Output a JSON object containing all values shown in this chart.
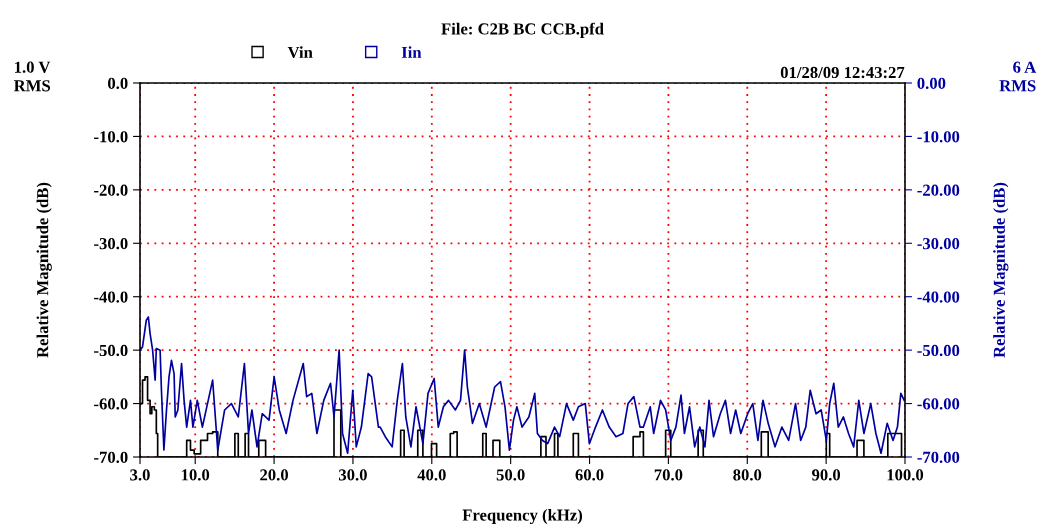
{
  "chart_data": {
    "type": "line",
    "title": "File: C2B BC CCB.pfd",
    "xlabel": "Frequency (kHz)",
    "ylabel": "Relative Magnitude (dB)",
    "y2label": "Relative Magnitude (dB)",
    "annotations": [
      "1.0 V\nRMS",
      "6 A\nRMS",
      "01/28/09 12:43:27"
    ],
    "legend": "top",
    "grid": true,
    "marker": "none",
    "line_style": "solid",
    "xlim": [
      3,
      100
    ],
    "xticks": [
      {
        "value": 3,
        "label": "3.0"
      },
      {
        "value": 10,
        "label": "10.0"
      },
      {
        "value": 20,
        "label": "20.0"
      },
      {
        "value": 30,
        "label": "30.0"
      },
      {
        "value": 40,
        "label": "40.0"
      },
      {
        "value": 50,
        "label": "50.0"
      },
      {
        "value": 60,
        "label": "60.0"
      },
      {
        "value": 70,
        "label": "70.0"
      },
      {
        "value": 80,
        "label": "80.0"
      },
      {
        "value": 90,
        "label": "90.0"
      },
      {
        "value": 100,
        "label": "100.0"
      }
    ],
    "ylim": [
      -70,
      0
    ],
    "yticks": [
      {
        "value": 0,
        "label": "0.0"
      },
      {
        "value": -10,
        "label": "-10.0"
      },
      {
        "value": -20,
        "label": "-20.0"
      },
      {
        "value": -30,
        "label": "-30.0"
      },
      {
        "value": -40,
        "label": "-40.0"
      },
      {
        "value": -50,
        "label": "-50.0"
      },
      {
        "value": -60,
        "label": "-60.0"
      },
      {
        "value": -70,
        "label": "-70.0"
      }
    ],
    "y2lim": [
      -70,
      0
    ],
    "y2ticks": [
      {
        "value": 0,
        "label": "0.00"
      },
      {
        "value": -10,
        "label": "-10.00"
      },
      {
        "value": -20,
        "label": "-20.00"
      },
      {
        "value": -30,
        "label": "-30.00"
      },
      {
        "value": -40,
        "label": "-40.00"
      },
      {
        "value": -50,
        "label": "-50.00"
      },
      {
        "value": -60,
        "label": "-60.00"
      },
      {
        "value": -70,
        "label": "-70.00"
      }
    ],
    "series": [
      {
        "name": "Vin",
        "color": "#000000",
        "type": "step",
        "x": [
          3.0,
          3.32,
          3.64,
          3.96,
          4.28,
          4.5,
          4.82,
          5.07,
          5.24,
          8.59,
          8.92,
          9.4,
          9.87,
          10.69,
          11.56,
          12.21,
          12.86,
          15.03,
          15.46,
          16.33,
          16.76,
          18.06,
          18.93,
          27.6,
          28.46,
          36.05,
          36.49,
          38.22,
          38.87,
          39.96,
          40.61,
          42.34,
          42.77,
          43.21,
          46.46,
          46.89,
          47.76,
          48.62,
          53.83,
          54.48,
          55.56,
          55.99,
          57.94,
          58.59,
          65.53,
          66.4,
          66.83,
          69.65,
          70.3,
          73.77,
          74.42,
          81.78,
          82.65,
          90.02,
          90.45,
          93.92,
          94.79,
          97.82,
          98.69,
          99.56
        ],
        "values": [
          -60.0,
          -55.6,
          -55.0,
          -59.4,
          -61.9,
          -60.6,
          -61.2,
          -65.6,
          -70,
          -70,
          -66.9,
          -68.7,
          -69.4,
          -66.9,
          -65.6,
          -65.3,
          -70,
          -65.6,
          -70,
          -65.6,
          -70,
          -66.9,
          -70,
          -61.2,
          -70,
          -65.0,
          -70,
          -65.0,
          -70,
          -67.5,
          -70,
          -65.6,
          -65.3,
          -70,
          -65.6,
          -70,
          -66.9,
          -70,
          -66.2,
          -70,
          -65.6,
          -70,
          -65.6,
          -70,
          -66.2,
          -65.3,
          -70,
          -65.0,
          -70,
          -65.0,
          -70,
          -65.3,
          -70,
          -65.6,
          -70,
          -66.9,
          -70,
          -65.6,
          -65.6,
          -70
        ]
      },
      {
        "name": "Iin",
        "color": "#0000a0",
        "axis": "y2",
        "x": [
          3.0,
          3.32,
          3.8,
          4.06,
          4.28,
          4.6,
          4.92,
          5.07,
          5.55,
          5.72,
          6.03,
          6.36,
          6.68,
          6.99,
          7.32,
          7.47,
          7.8,
          8.27,
          8.59,
          8.92,
          9.4,
          9.71,
          10.26,
          10.91,
          12.21,
          12.86,
          13.73,
          14.59,
          15.46,
          16.24,
          16.76,
          17.19,
          17.84,
          18.5,
          19.36,
          20.01,
          20.66,
          21.53,
          22.4,
          23.7,
          24.13,
          24.78,
          25.43,
          26.3,
          27.16,
          27.6,
          28.25,
          28.68,
          29.33,
          29.98,
          30.42,
          31.07,
          31.93,
          32.37,
          33.23,
          33.45,
          34.1,
          34.97,
          35.62,
          36.27,
          36.7,
          37.35,
          38.0,
          38.87,
          39.52,
          40.3,
          40.82,
          41.47,
          42.12,
          42.99,
          43.64,
          44.16,
          44.51,
          45.16,
          46.02,
          46.89,
          47.97,
          48.71,
          49.28,
          49.84,
          50.36,
          50.79,
          51.44,
          52.31,
          53.05,
          53.39,
          54.04,
          54.69,
          55.56,
          56.21,
          57.08,
          57.94,
          58.59,
          59.46,
          59.98,
          60.76,
          61.63,
          62.5,
          63.36,
          64.23,
          64.88,
          65.62,
          66.4,
          66.83,
          67.7,
          68.13,
          69.0,
          69.65,
          70.3,
          70.95,
          71.6,
          72.03,
          72.68,
          73.33,
          73.98,
          74.63,
          75.15,
          75.72,
          76.58,
          77.23,
          77.88,
          78.53,
          79.18,
          80.05,
          80.7,
          81.35,
          82.0,
          82.65,
          83.52,
          84.39,
          85.25,
          86.12,
          86.77,
          87.42,
          87.98,
          88.72,
          89.37,
          90.02,
          90.45,
          90.97,
          91.54,
          92.19,
          92.84,
          93.49,
          94.14,
          94.79,
          95.66,
          96.31,
          96.96,
          97.74,
          98.48,
          99.04,
          99.47,
          99.9
        ],
        "values": [
          -50.0,
          -49.4,
          -44.4,
          -43.8,
          -46.9,
          -50.0,
          -55.6,
          -49.7,
          -50.0,
          -57.5,
          -68.7,
          -61.2,
          -55.0,
          -51.9,
          -54.4,
          -62.5,
          -61.2,
          -52.5,
          -59.4,
          -64.4,
          -59.4,
          -64.4,
          -59.4,
          -64.4,
          -55.6,
          -68.7,
          -61.2,
          -60.0,
          -62.5,
          -52.5,
          -65.6,
          -61.2,
          -68.1,
          -61.9,
          -63.1,
          -55.0,
          -61.2,
          -65.6,
          -59.4,
          -52.5,
          -58.7,
          -58.1,
          -65.6,
          -59.4,
          -56.2,
          -62.5,
          -50.0,
          -65.6,
          -69.3,
          -57.5,
          -68.1,
          -64.4,
          -54.4,
          -55.0,
          -64.4,
          -64.4,
          -66.2,
          -68.1,
          -59.4,
          -52.5,
          -62.5,
          -68.1,
          -60.6,
          -67.5,
          -58.1,
          -55.3,
          -64.4,
          -60.6,
          -59.4,
          -61.2,
          -59.4,
          -50.0,
          -56.9,
          -63.7,
          -60.0,
          -64.4,
          -56.9,
          -55.9,
          -60.6,
          -68.7,
          -63.1,
          -60.6,
          -64.4,
          -62.5,
          -58.1,
          -65.6,
          -66.9,
          -67.5,
          -64.4,
          -66.2,
          -60.0,
          -63.1,
          -60.6,
          -60.0,
          -67.5,
          -64.4,
          -61.2,
          -64.4,
          -66.2,
          -65.6,
          -60.0,
          -58.7,
          -64.4,
          -64.4,
          -60.6,
          -65.6,
          -59.4,
          -61.2,
          -66.9,
          -64.4,
          -58.4,
          -65.6,
          -60.6,
          -68.1,
          -64.4,
          -68.1,
          -59.4,
          -66.2,
          -61.9,
          -59.4,
          -65.6,
          -61.2,
          -65.6,
          -61.9,
          -60.0,
          -66.9,
          -59.4,
          -63.7,
          -68.1,
          -64.4,
          -66.9,
          -60.0,
          -66.9,
          -64.4,
          -57.5,
          -61.9,
          -61.2,
          -66.9,
          -60.0,
          -56.2,
          -64.4,
          -62.5,
          -65.6,
          -68.1,
          -59.4,
          -65.6,
          -60.0,
          -65.6,
          -69.3,
          -63.7,
          -66.9,
          -64.4,
          -58.1,
          -59.4
        ]
      }
    ]
  }
}
